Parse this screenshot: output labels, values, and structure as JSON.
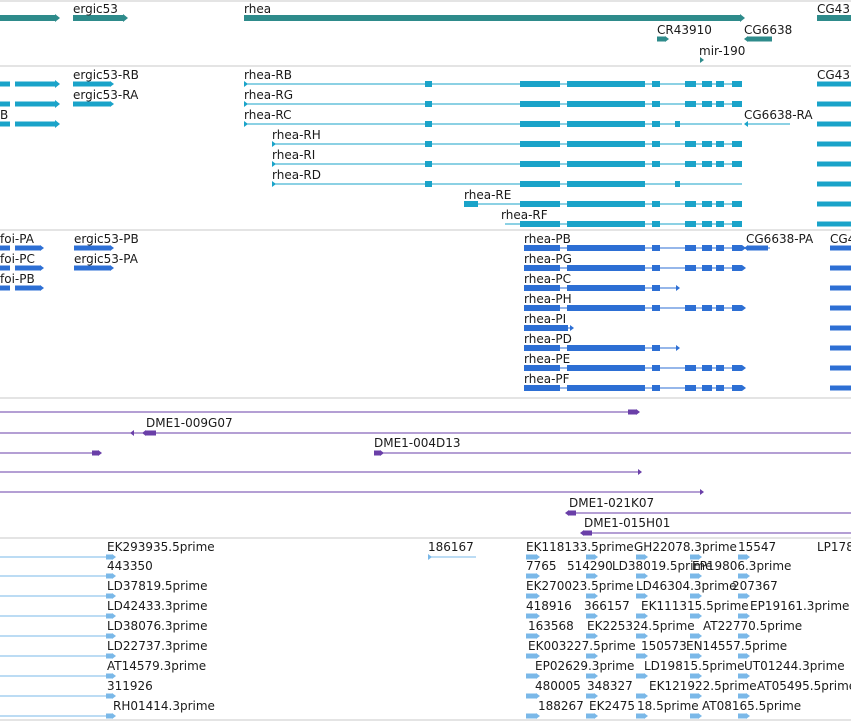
{
  "colors": {
    "gene": "#2e8b8b",
    "transcript": "#1aa3c9",
    "protein": "#2d6fd4",
    "clone": "#6a3fa8",
    "est": "#7ab8e8",
    "divider": "#c8c8c8"
  },
  "gene_track": {
    "labels": [
      "ergic53",
      "rhea",
      "CG43",
      "CR43910",
      "CG6638",
      "mir-190"
    ]
  },
  "transcript_track": {
    "labels": [
      "ergic53-RB",
      "ergic53-RA",
      "rhea-RB",
      "rhea-RG",
      "rhea-RC",
      "rhea-RH",
      "rhea-RI",
      "rhea-RD",
      "rhea-RE",
      "rhea-RF",
      "CG6638-RA",
      "CG43",
      "B"
    ]
  },
  "protein_track": {
    "labels": [
      "foi-PA",
      "foi-PC",
      "foi-PB",
      "ergic53-PB",
      "ergic53-PA",
      "rhea-PB",
      "rhea-PG",
      "rhea-PC",
      "rhea-PH",
      "rhea-PI",
      "rhea-PD",
      "rhea-PE",
      "rhea-PF",
      "CG6638-PA",
      "CG4"
    ]
  },
  "clone_track": {
    "labels": [
      "DME1-009G07",
      "DME1-004D13",
      "DME1-021K07",
      "DME1-015H01"
    ]
  },
  "est_track": {
    "labels": [
      "EK293935.5prime",
      "443350",
      "LD37819.5prime",
      "LD42433.3prime",
      "LD38076.3prime",
      "LD22737.3prime",
      "AT14579.3prime",
      "311926",
      "RH01414.3prime",
      "186167",
      "EK118133.5prime",
      "GH22078.3prime",
      "15547",
      "LP178",
      "7765",
      "514290",
      "LD38019.5prime",
      "EP19806.3prime",
      "EK270023.5prime",
      "LD46304.3prime",
      "207367",
      "418916",
      "366157",
      "EK111315.5prime",
      "EP19161.3prime",
      "163568",
      "EK225324.5prime",
      "AT22770.5prime",
      "EK003227.5prime",
      "150573",
      "EN14557.5prime",
      "EP02629.3prime",
      "LD19815.5prime",
      "UT01244.3prime",
      "480005",
      "348327",
      "EK121922.5prime",
      "AT05495.5prime",
      "188267",
      "EK2475",
      "18.5prime",
      "AT08165.5prime"
    ]
  }
}
